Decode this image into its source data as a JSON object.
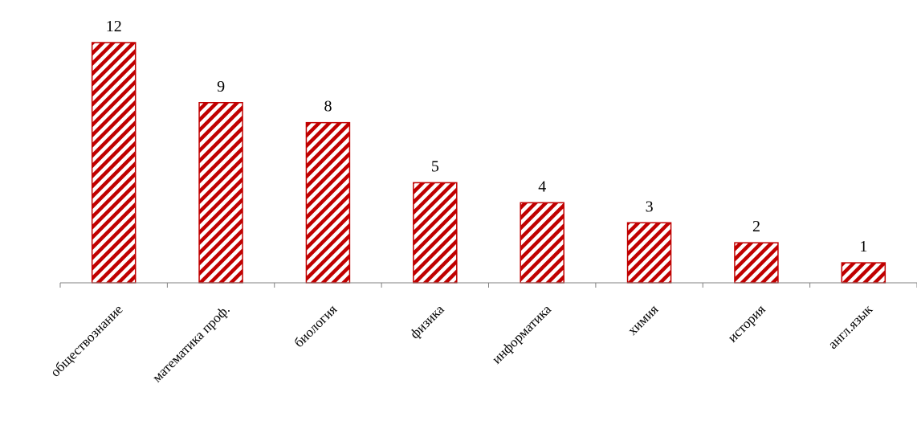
{
  "chart_data": {
    "type": "bar",
    "categories": [
      "обществознание",
      "математика проф.",
      "биология",
      "физика",
      "информатика",
      "химия",
      "история",
      "англ.язык"
    ],
    "values": [
      12,
      9,
      8,
      5,
      4,
      3,
      2,
      1
    ],
    "title": "",
    "xlabel": "",
    "ylabel": "",
    "ylim": [
      0,
      12
    ],
    "grid": false,
    "legend": "none",
    "data_labels": true,
    "colors": {
      "bar_stroke": "#c00000",
      "bar_hatch": "#c00000",
      "bar_bg": "#ffffff",
      "axis": "#808080"
    }
  }
}
